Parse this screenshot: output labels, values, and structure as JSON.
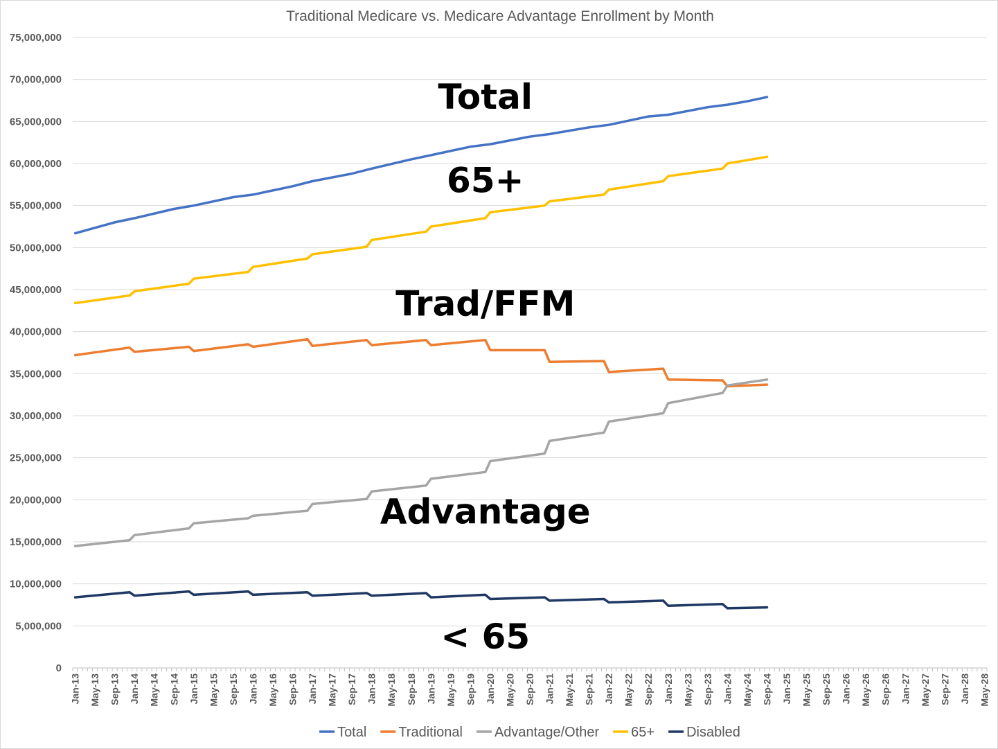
{
  "chart_data": {
    "type": "line",
    "title": "Traditional Medicare vs. Medicare Advantage Enrollment by Month",
    "xlabel": "",
    "ylabel": "",
    "x_range": [
      "Jan-13",
      "May-28"
    ],
    "ylim": [
      0,
      75000000
    ],
    "y_ticks": [
      "0",
      "5,000,000",
      "10,000,000",
      "15,000,000",
      "20,000,000",
      "25,000,000",
      "30,000,000",
      "35,000,000",
      "40,000,000",
      "45,000,000",
      "50,000,000",
      "55,000,000",
      "60,000,000",
      "65,000,000",
      "70,000,000",
      "75,000,000"
    ],
    "x_ticks": [
      "Jan-13",
      "May-13",
      "Sep-13",
      "Jan-14",
      "May-14",
      "Sep-14",
      "Jan-15",
      "May-15",
      "Sep-15",
      "Jan-16",
      "May-16",
      "Sep-16",
      "Jan-17",
      "May-17",
      "Sep-17",
      "Jan-18",
      "May-18",
      "Sep-18",
      "Jan-19",
      "May-19",
      "Sep-19",
      "Jan-20",
      "May-20",
      "Sep-20",
      "Jan-21",
      "May-21",
      "Sep-21",
      "Jan-22",
      "May-22",
      "Sep-22",
      "Jan-23",
      "May-23",
      "Sep-23",
      "Jan-24",
      "May-24",
      "Sep-24",
      "Jan-25",
      "May-25",
      "Sep-25",
      "Jan-26",
      "May-26",
      "Sep-26",
      "Jan-27",
      "May-27",
      "Sep-27",
      "Jan-28",
      "May-28"
    ],
    "grid": "horizontal",
    "legend_position": "bottom",
    "series": [
      {
        "name": "Total",
        "color": "#4472c4",
        "points": [
          [
            "Jan-13",
            51700000
          ],
          [
            "Sep-13",
            53000000
          ],
          [
            "Jan-14",
            53500000
          ],
          [
            "Sep-14",
            54600000
          ],
          [
            "Jan-15",
            55000000
          ],
          [
            "Sep-15",
            56000000
          ],
          [
            "Jan-16",
            56300000
          ],
          [
            "Sep-16",
            57300000
          ],
          [
            "Jan-17",
            57900000
          ],
          [
            "Sep-17",
            58800000
          ],
          [
            "Jan-18",
            59400000
          ],
          [
            "Sep-18",
            60500000
          ],
          [
            "Jan-19",
            61000000
          ],
          [
            "Sep-19",
            62000000
          ],
          [
            "Jan-20",
            62300000
          ],
          [
            "Sep-20",
            63200000
          ],
          [
            "Jan-21",
            63500000
          ],
          [
            "Sep-21",
            64300000
          ],
          [
            "Jan-22",
            64600000
          ],
          [
            "Sep-22",
            65600000
          ],
          [
            "Jan-23",
            65800000
          ],
          [
            "Sep-23",
            66700000
          ],
          [
            "Jan-24",
            67000000
          ],
          [
            "May-24",
            67400000
          ],
          [
            "Sep-24",
            67900000
          ]
        ]
      },
      {
        "name": "Traditional",
        "color": "#ed7d31",
        "points": [
          [
            "Jan-13",
            37200000
          ],
          [
            "Dec-13",
            38100000
          ],
          [
            "Jan-14",
            37600000
          ],
          [
            "Dec-14",
            38200000
          ],
          [
            "Jan-15",
            37700000
          ],
          [
            "Dec-15",
            38500000
          ],
          [
            "Jan-16",
            38200000
          ],
          [
            "Dec-16",
            39100000
          ],
          [
            "Jan-17",
            38300000
          ],
          [
            "Dec-17",
            39000000
          ],
          [
            "Jan-18",
            38400000
          ],
          [
            "Dec-18",
            39000000
          ],
          [
            "Jan-19",
            38400000
          ],
          [
            "Dec-19",
            39000000
          ],
          [
            "Jan-20",
            37800000
          ],
          [
            "Dec-20",
            37800000
          ],
          [
            "Jan-21",
            36400000
          ],
          [
            "Dec-21",
            36500000
          ],
          [
            "Jan-22",
            35200000
          ],
          [
            "Dec-22",
            35600000
          ],
          [
            "Jan-23",
            34300000
          ],
          [
            "Dec-23",
            34200000
          ],
          [
            "Jan-24",
            33500000
          ],
          [
            "Sep-24",
            33700000
          ]
        ]
      },
      {
        "name": "Advantage/Other",
        "color": "#a5a5a5",
        "points": [
          [
            "Jan-13",
            14500000
          ],
          [
            "Dec-13",
            15200000
          ],
          [
            "Jan-14",
            15800000
          ],
          [
            "Dec-14",
            16600000
          ],
          [
            "Jan-15",
            17200000
          ],
          [
            "Dec-15",
            17800000
          ],
          [
            "Jan-16",
            18100000
          ],
          [
            "Dec-16",
            18700000
          ],
          [
            "Jan-17",
            19500000
          ],
          [
            "Dec-17",
            20100000
          ],
          [
            "Jan-18",
            21000000
          ],
          [
            "Dec-18",
            21700000
          ],
          [
            "Jan-19",
            22500000
          ],
          [
            "Dec-19",
            23300000
          ],
          [
            "Jan-20",
            24600000
          ],
          [
            "Dec-20",
            25500000
          ],
          [
            "Jan-21",
            27000000
          ],
          [
            "Dec-21",
            28000000
          ],
          [
            "Jan-22",
            29300000
          ],
          [
            "Dec-22",
            30300000
          ],
          [
            "Jan-23",
            31500000
          ],
          [
            "Dec-23",
            32700000
          ],
          [
            "Jan-24",
            33600000
          ],
          [
            "Sep-24",
            34300000
          ]
        ]
      },
      {
        "name": "65+",
        "color": "#ffc000",
        "points": [
          [
            "Jan-13",
            43400000
          ],
          [
            "Dec-13",
            44300000
          ],
          [
            "Jan-14",
            44800000
          ],
          [
            "Dec-14",
            45700000
          ],
          [
            "Jan-15",
            46300000
          ],
          [
            "Dec-15",
            47100000
          ],
          [
            "Jan-16",
            47700000
          ],
          [
            "Dec-16",
            48700000
          ],
          [
            "Jan-17",
            49200000
          ],
          [
            "Dec-17",
            50100000
          ],
          [
            "Jan-18",
            50900000
          ],
          [
            "Dec-18",
            51900000
          ],
          [
            "Jan-19",
            52500000
          ],
          [
            "Dec-19",
            53500000
          ],
          [
            "Jan-20",
            54200000
          ],
          [
            "Dec-20",
            55000000
          ],
          [
            "Jan-21",
            55500000
          ],
          [
            "Dec-21",
            56300000
          ],
          [
            "Jan-22",
            56900000
          ],
          [
            "Dec-22",
            57900000
          ],
          [
            "Jan-23",
            58500000
          ],
          [
            "Dec-23",
            59400000
          ],
          [
            "Jan-24",
            60000000
          ],
          [
            "Sep-24",
            60800000
          ]
        ]
      },
      {
        "name": "Disabled",
        "color": "#203864",
        "points": [
          [
            "Jan-13",
            8400000
          ],
          [
            "Dec-13",
            9000000
          ],
          [
            "Jan-14",
            8600000
          ],
          [
            "Dec-14",
            9100000
          ],
          [
            "Jan-15",
            8700000
          ],
          [
            "Dec-15",
            9100000
          ],
          [
            "Jan-16",
            8700000
          ],
          [
            "Dec-16",
            9000000
          ],
          [
            "Jan-17",
            8600000
          ],
          [
            "Dec-17",
            8900000
          ],
          [
            "Jan-18",
            8600000
          ],
          [
            "Dec-18",
            8900000
          ],
          [
            "Jan-19",
            8400000
          ],
          [
            "Dec-19",
            8700000
          ],
          [
            "Jan-20",
            8200000
          ],
          [
            "Dec-20",
            8400000
          ],
          [
            "Jan-21",
            8000000
          ],
          [
            "Dec-21",
            8200000
          ],
          [
            "Jan-22",
            7800000
          ],
          [
            "Dec-22",
            8000000
          ],
          [
            "Jan-23",
            7400000
          ],
          [
            "Dec-23",
            7600000
          ],
          [
            "Jan-24",
            7100000
          ],
          [
            "Sep-24",
            7200000
          ]
        ]
      }
    ],
    "annotations": [
      {
        "text": "Total",
        "at": [
          "Dec-19",
          66500000
        ]
      },
      {
        "text": "65+",
        "at": [
          "Dec-19",
          56600000
        ]
      },
      {
        "text": "Trad/FFM",
        "at": [
          "Dec-19",
          41900000
        ]
      },
      {
        "text": "Advantage",
        "at": [
          "Dec-19",
          17200000
        ]
      },
      {
        "text": "< 65",
        "at": [
          "Dec-19",
          2300000
        ]
      }
    ]
  }
}
